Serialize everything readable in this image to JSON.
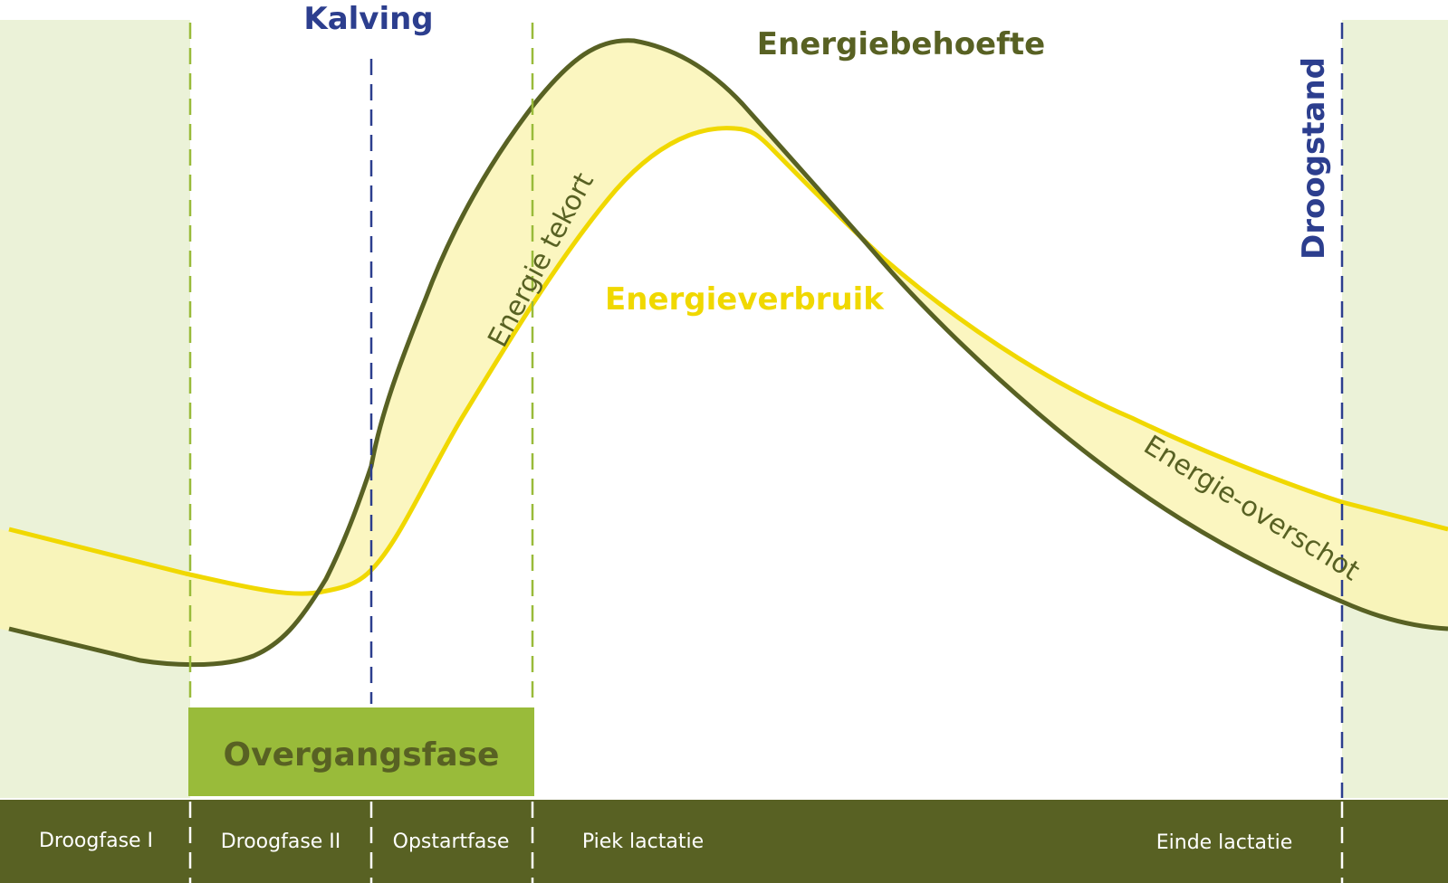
{
  "markers": {
    "kalving": "Kalving",
    "droogstand": "Droogstand"
  },
  "curves": {
    "energiebehoefte": "Energiebehoefte",
    "energieverbruik": "Energieverbruik"
  },
  "areas": {
    "tekort": "Energie tekort",
    "overschot": "Energie-overschot"
  },
  "overgangsfase": "Overgangsfase",
  "phases": [
    "Droogfase I",
    "Droogfase II",
    "Opstartfase",
    "Piek lactatie",
    "Einde lactatie"
  ],
  "colors": {
    "dark_green": "#586123",
    "yellow": "#f0d800",
    "light_yellow": "#faf4b5",
    "light_green_bg": "#ebf2d8",
    "lime": "#99bb3a",
    "navy": "#2c3e8e"
  }
}
